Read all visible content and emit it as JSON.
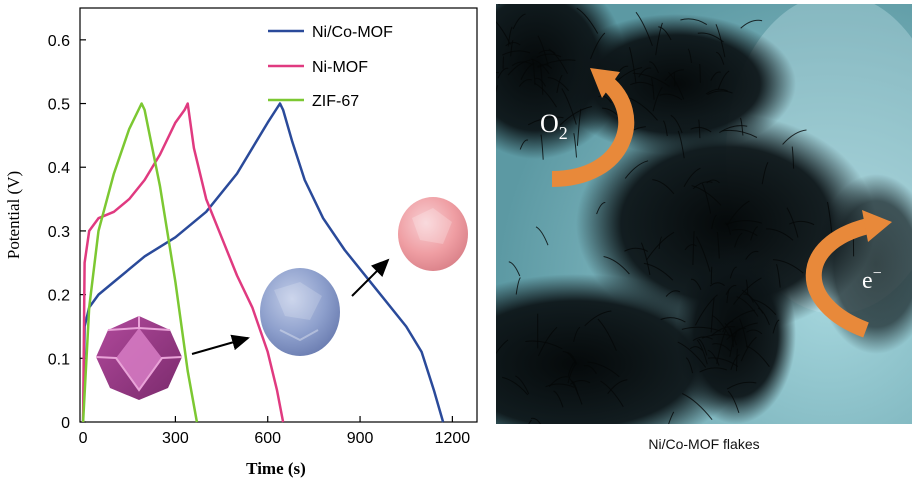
{
  "chart_data": {
    "type": "line",
    "xlabel": "Time (s)",
    "ylabel": "Potential (V)",
    "xlim": [
      -10,
      1280
    ],
    "ylim": [
      0,
      0.65
    ],
    "xticks": [
      "0",
      "300",
      "600",
      "900",
      "1200"
    ],
    "yticks": [
      "0",
      "0.1",
      "0.2",
      "0.3",
      "0.4",
      "0.5",
      "0.6"
    ],
    "legend_position": "top-right",
    "series": [
      {
        "name": "Ni/Co-MOF",
        "color": "#2a4a9a",
        "x": [
          0,
          5,
          20,
          50,
          100,
          200,
          300,
          400,
          500,
          600,
          640,
          650,
          680,
          720,
          780,
          850,
          950,
          1050,
          1100,
          1140,
          1170
        ],
        "y": [
          0,
          0.15,
          0.18,
          0.2,
          0.22,
          0.26,
          0.29,
          0.33,
          0.39,
          0.47,
          0.5,
          0.49,
          0.44,
          0.38,
          0.32,
          0.27,
          0.21,
          0.15,
          0.11,
          0.05,
          0.0
        ]
      },
      {
        "name": "Ni-MOF",
        "color": "#e03a80",
        "x": [
          0,
          5,
          20,
          50,
          100,
          150,
          200,
          250,
          300,
          330,
          340,
          360,
          400,
          450,
          500,
          550,
          600,
          630,
          650
        ],
        "y": [
          0,
          0.25,
          0.3,
          0.32,
          0.33,
          0.35,
          0.38,
          0.42,
          0.47,
          0.49,
          0.5,
          0.43,
          0.35,
          0.29,
          0.23,
          0.18,
          0.11,
          0.05,
          0.0
        ]
      },
      {
        "name": "ZIF-67",
        "color": "#7cc832",
        "x": [
          0,
          20,
          50,
          100,
          150,
          190,
          200,
          250,
          300,
          340,
          370
        ],
        "y": [
          0,
          0.18,
          0.3,
          0.39,
          0.46,
          0.5,
          0.49,
          0.37,
          0.22,
          0.08,
          0.0
        ]
      }
    ]
  },
  "tem": {
    "o2_label": "O",
    "o2_sub": "2",
    "e_label": "e",
    "e_sup": "−",
    "caption": "Ni/Co-MOF flakes"
  },
  "colors": {
    "tem_background": "#7fb8c0",
    "flake_dark": "#0d1518",
    "arrow": "#e8893a"
  }
}
